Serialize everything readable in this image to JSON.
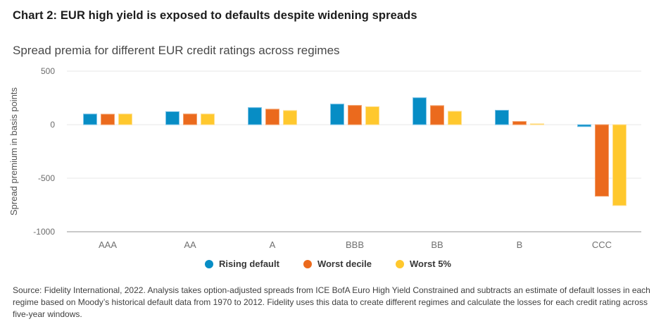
{
  "title": "Chart 2: EUR high yield is exposed to defaults despite widening spreads",
  "subtitle": "Spread premia for different EUR credit ratings across regimes",
  "footer": "Source: Fidelity International, 2022. Analysis takes option-adjusted spreads from ICE BofA Euro High Yield Constrained and subtracts an estimate of default losses in each regime based on Moody’s historical default data from 1970 to 2012. Fidelity uses this data to create different regimes and calculate the losses for each credit rating across five-year windows.",
  "chart_data": {
    "type": "bar",
    "title": "Spread premia for different EUR credit ratings across regimes",
    "categories": [
      "AAA",
      "AA",
      "A",
      "BBB",
      "BB",
      "B",
      "CCC"
    ],
    "series": [
      {
        "name": "Rising default",
        "color": "#078DC5",
        "border": "#7FC4E8",
        "values": [
          100,
          122,
          160,
          193,
          252,
          135,
          -18
        ]
      },
      {
        "name": "Worst decile",
        "color": "#EB6A1D",
        "border": "#F3A06A",
        "values": [
          98,
          100,
          145,
          180,
          178,
          30,
          -668
        ]
      },
      {
        "name": "Worst 5%",
        "color": "#FFC82D",
        "border": "#FFDE8C",
        "values": [
          100,
          100,
          132,
          168,
          125,
          8,
          -755
        ]
      }
    ],
    "ylabel": "Spread premium in basis points",
    "yticks": [
      500,
      0,
      -500,
      -1000
    ],
    "ylim": [
      -1000,
      500
    ],
    "grid": true,
    "legend_position": "bottom",
    "colors": {
      "gridline": "#E7E7E7",
      "axis_line": "#C9C9C9",
      "tick_label": "#6B6B6B",
      "category_label": "#707070",
      "axis_title": "#555555"
    }
  }
}
